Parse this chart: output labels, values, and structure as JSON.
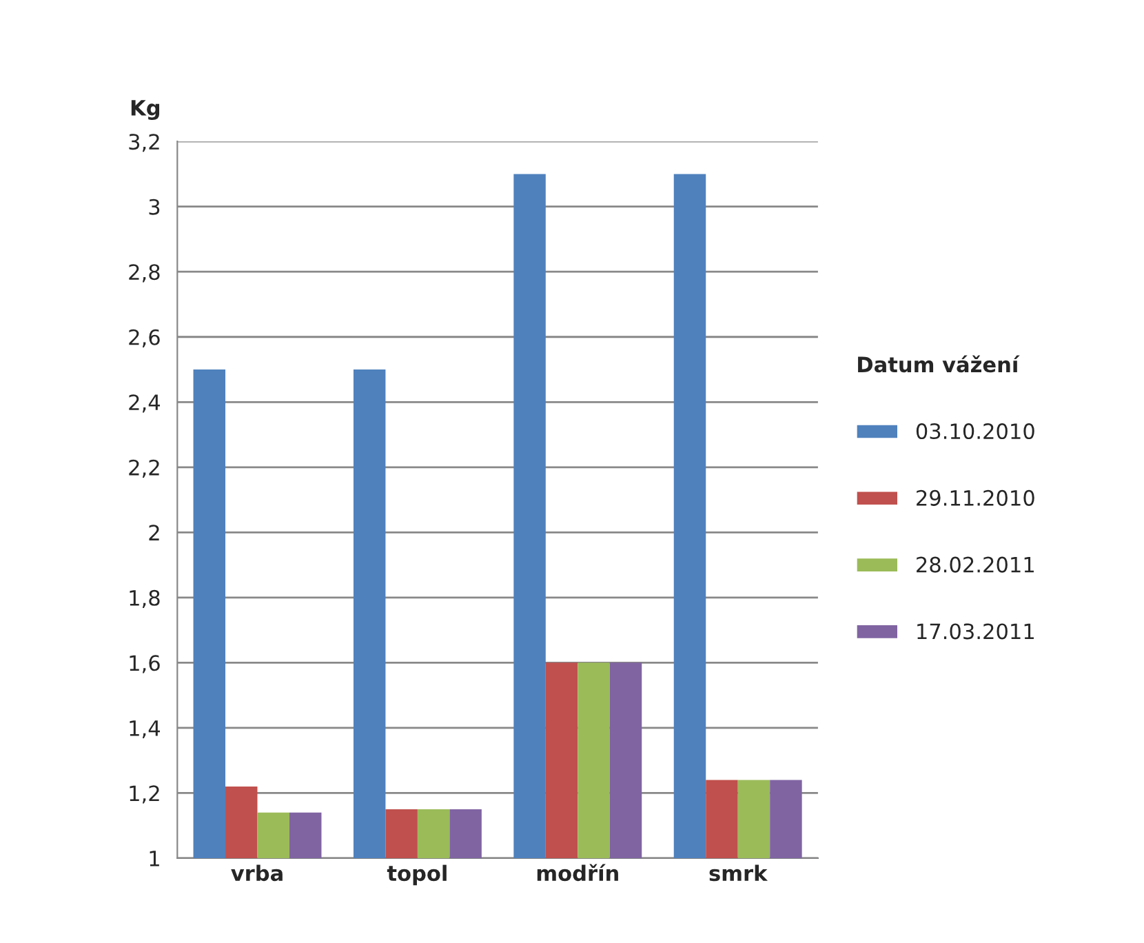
{
  "chart_data": {
    "type": "bar",
    "ylabel": "Kg",
    "legend_title": "Datum vážení",
    "categories": [
      "vrba",
      "topol",
      "modřín",
      "smrk"
    ],
    "series": [
      {
        "name": "03.10.2010",
        "color": "#4f81bd",
        "values": [
          2.5,
          2.5,
          3.1,
          3.1
        ]
      },
      {
        "name": "29.11.2010",
        "color": "#c0504d",
        "values": [
          1.22,
          1.15,
          1.6,
          1.24
        ]
      },
      {
        "name": "28.02.2011",
        "color": "#9bbb59",
        "values": [
          1.14,
          1.15,
          1.6,
          1.24
        ]
      },
      {
        "name": "17.03.2011",
        "color": "#8064a2",
        "values": [
          1.14,
          1.15,
          1.6,
          1.24
        ]
      }
    ],
    "ylim": [
      1,
      3.2
    ],
    "yticks": [
      1,
      {
        "value": 1.2,
        "label": "1,2"
      },
      {
        "value": 1.4,
        "label": "1,4"
      },
      {
        "value": 1.6,
        "label": "1,6"
      },
      {
        "value": 1.8,
        "label": "1,8"
      },
      2,
      {
        "value": 2.2,
        "label": "2,2"
      },
      {
        "value": 2.4,
        "label": "2,4"
      },
      {
        "value": 2.6,
        "label": "2,6"
      },
      {
        "value": 2.8,
        "label": "2,8"
      },
      3,
      {
        "value": 3.2,
        "label": "3,2"
      }
    ],
    "grid": "y",
    "legend": "right"
  }
}
